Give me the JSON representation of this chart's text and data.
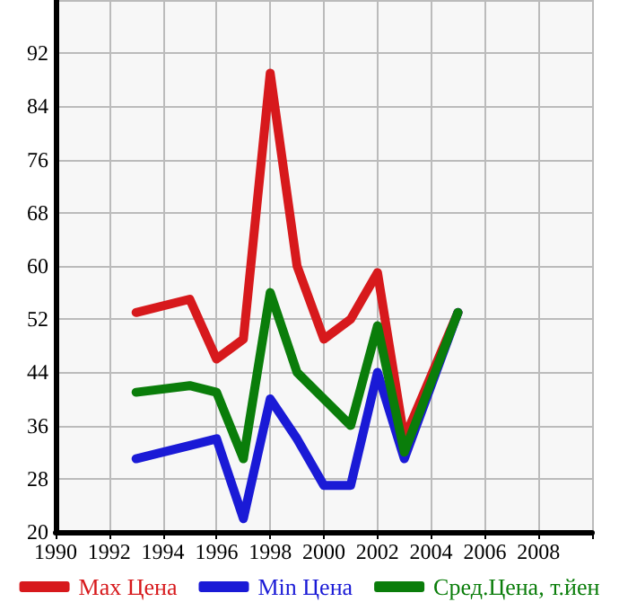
{
  "chart_data": {
    "type": "line",
    "xlim": [
      1990,
      2010
    ],
    "xticks": [
      1990,
      1992,
      1994,
      1996,
      1998,
      2000,
      2002,
      2004,
      2006,
      2008,
      {
        "value": 2010,
        "label": null
      }
    ],
    "ylim": [
      20,
      100
    ],
    "yticks": [
      20,
      28,
      36,
      44,
      52,
      60,
      68,
      76,
      84,
      92,
      {
        "value": 100,
        "label": null
      }
    ],
    "grid": true,
    "legend": "bottom",
    "marker": "none",
    "line_style": "solid",
    "series": [
      {
        "name": "Max Цена",
        "color": "#d7191c",
        "x": [
          1993,
          1995,
          1996,
          1997,
          1998,
          1999,
          2000,
          2001,
          2002,
          2003,
          2005
        ],
        "values": [
          53,
          55,
          46,
          49,
          89,
          60,
          49,
          52,
          59,
          34,
          53
        ]
      },
      {
        "name": "Min Цена",
        "color": "#1a1ad6",
        "x": [
          1993,
          1995,
          1996,
          1997,
          1998,
          1999,
          2000,
          2001,
          2002,
          2003,
          2005
        ],
        "values": [
          31,
          33,
          34,
          22,
          40,
          34,
          27,
          27,
          44,
          31,
          53
        ]
      },
      {
        "name": "Сред.Цена, т.йен",
        "color": "#0a7d0a",
        "x": [
          1993,
          1995,
          1996,
          1997,
          1998,
          1999,
          2000,
          2001,
          2002,
          2003,
          2005
        ],
        "values": [
          41,
          42,
          41,
          31,
          56,
          44,
          40,
          36,
          51,
          32,
          53
        ]
      }
    ]
  }
}
